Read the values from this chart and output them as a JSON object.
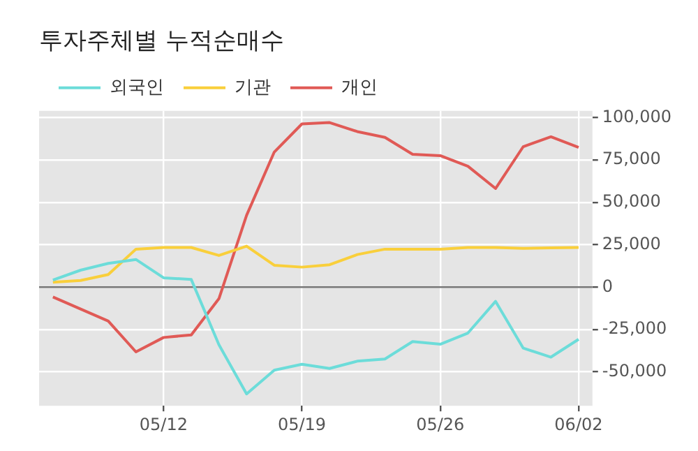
{
  "chart_data": {
    "type": "line",
    "title": "투자주체별 누적순매수",
    "categories": [
      null,
      null,
      null,
      null,
      "05/12",
      null,
      null,
      null,
      null,
      "05/19",
      null,
      null,
      null,
      null,
      "05/26",
      null,
      null,
      null,
      null,
      "06/02"
    ],
    "series": [
      {
        "name": "외국인",
        "color": "#6cdcd9",
        "values": [
          4200,
          10000,
          14000,
          16300,
          5500,
          4500,
          -34000,
          -63000,
          -49000,
          -45500,
          -48000,
          -43700,
          -42400,
          -32100,
          -33700,
          -27100,
          -8400,
          -36000,
          -41300,
          -30800
        ]
      },
      {
        "name": "기관",
        "color": "#f9cf3b",
        "values": [
          2900,
          3900,
          7400,
          22400,
          23400,
          23400,
          18700,
          24200,
          12900,
          11800,
          13200,
          19200,
          22400,
          22400,
          22400,
          23400,
          23400,
          22900,
          23200,
          23400
        ]
      },
      {
        "name": "개인",
        "color": "#e05a56",
        "values": [
          -5800,
          -12900,
          -20000,
          -38200,
          -29700,
          -28200,
          -6800,
          42400,
          79700,
          96300,
          97100,
          91800,
          88400,
          78400,
          77600,
          71300,
          58200,
          82900,
          88700,
          82400
        ]
      }
    ],
    "ylim": [
      -70000,
      104000
    ],
    "yticks": [
      {
        "value": -50000,
        "label": "-50,000"
      },
      {
        "value": -25000,
        "label": "-25,000"
      },
      0,
      {
        "value": 25000,
        "label": "25,000"
      },
      {
        "value": 50000,
        "label": "50,000"
      },
      {
        "value": 75000,
        "label": "75,000"
      },
      {
        "value": 100000,
        "label": "100,000"
      }
    ],
    "ref_lines": [
      {
        "axis": "y",
        "value": 0,
        "color": "#777777"
      }
    ],
    "grid": true,
    "legend": "top",
    "marker": "none",
    "line_style": "solid"
  }
}
